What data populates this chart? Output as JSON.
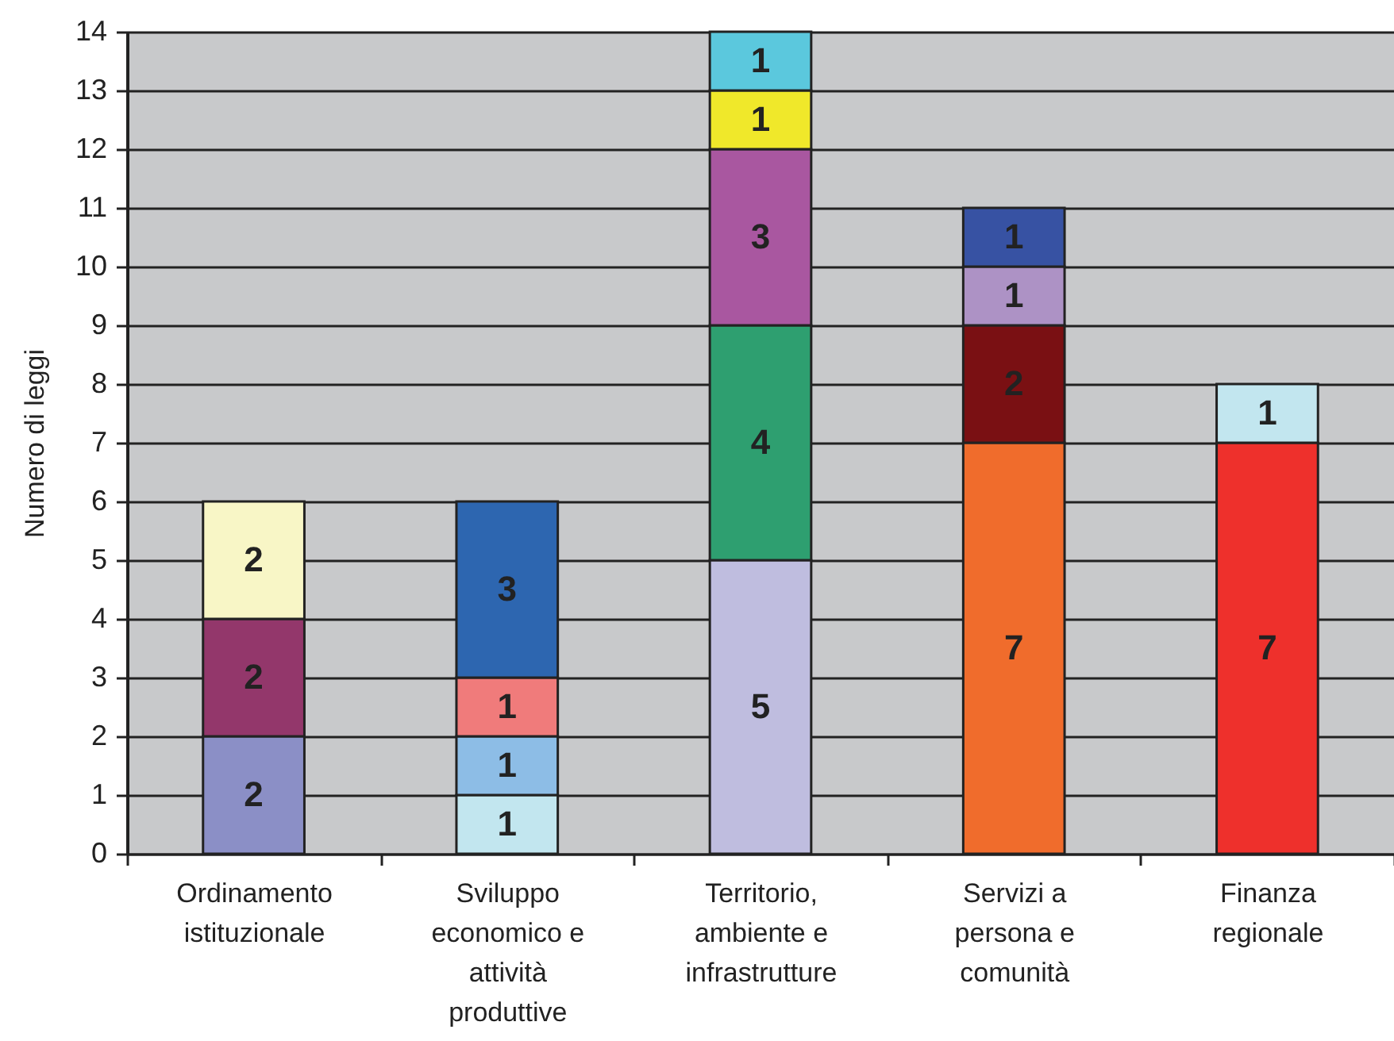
{
  "chart_data": {
    "type": "bar",
    "stacked": true,
    "ylabel": "Numero di leggi",
    "categories": [
      "Ordinamento istituzionale",
      "Sviluppo economico e attività produttive",
      "Territorio, ambiente e infrastrutture",
      "Servizi a persona e comunità",
      "Finanza regionale"
    ],
    "series": [
      {
        "values": [
          2,
          1,
          5,
          7,
          7
        ],
        "colors": [
          "#8b8fc6",
          "#c2e6ef",
          "#bfbddf",
          "#f06c2c",
          "#ee302c"
        ]
      },
      {
        "values": [
          2,
          1,
          4,
          2,
          1
        ],
        "colors": [
          "#93376b",
          "#8dbde6",
          "#2e9f70",
          "#7a1013",
          "#c2e6ef"
        ]
      },
      {
        "values": [
          2,
          1,
          3,
          1,
          null
        ],
        "colors": [
          "#f8f6c6",
          "#f07b7b",
          "#a957a0",
          "#ad92c5",
          null
        ]
      },
      {
        "values": [
          null,
          3,
          1,
          1,
          null
        ],
        "colors": [
          null,
          "#2d66b0",
          "#f0e82a",
          "#3752a3",
          null
        ]
      },
      {
        "values": [
          null,
          null,
          1,
          null,
          null
        ],
        "colors": [
          null,
          null,
          "#5bc8dd",
          null,
          null
        ]
      }
    ],
    "ylim": [
      0,
      14
    ],
    "yticks": [
      0,
      1,
      2,
      3,
      4,
      5,
      6,
      7,
      8,
      9,
      10,
      11,
      12,
      13,
      14
    ],
    "grid": "y",
    "data_labels": true
  }
}
